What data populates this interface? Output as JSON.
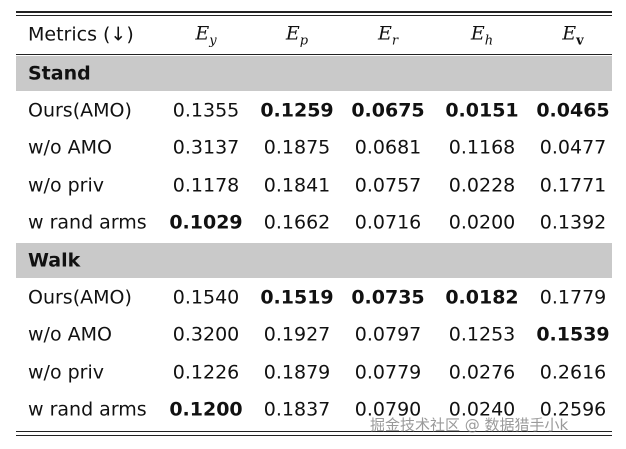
{
  "header": {
    "metric": "Metrics (↓)",
    "columns": [
      {
        "base": "E",
        "sub": "y",
        "sub_bold": false
      },
      {
        "base": "E",
        "sub": "p",
        "sub_bold": false
      },
      {
        "base": "E",
        "sub": "r",
        "sub_bold": false
      },
      {
        "base": "E",
        "sub": "h",
        "sub_bold": false
      },
      {
        "base": "E",
        "sub": "v",
        "sub_bold": true
      }
    ]
  },
  "sections": [
    {
      "title": "Stand",
      "rows": [
        {
          "label": "Ours(AMO)",
          "values": [
            "0.1355",
            "0.1259",
            "0.0675",
            "0.0151",
            "0.0465"
          ],
          "bold": [
            1,
            2,
            3,
            4
          ]
        },
        {
          "label": "w/o AMO",
          "values": [
            "0.3137",
            "0.1875",
            "0.0681",
            "0.1168",
            "0.0477"
          ],
          "bold": []
        },
        {
          "label": "w/o priv",
          "values": [
            "0.1178",
            "0.1841",
            "0.0757",
            "0.0228",
            "0.1771"
          ],
          "bold": []
        },
        {
          "label": "w rand arms",
          "values": [
            "0.1029",
            "0.1662",
            "0.0716",
            "0.0200",
            "0.1392"
          ],
          "bold": [
            0
          ]
        }
      ]
    },
    {
      "title": "Walk",
      "rows": [
        {
          "label": "Ours(AMO)",
          "values": [
            "0.1540",
            "0.1519",
            "0.0735",
            "0.0182",
            "0.1779"
          ],
          "bold": [
            1,
            2,
            3
          ]
        },
        {
          "label": "w/o AMO",
          "values": [
            "0.3200",
            "0.1927",
            "0.0797",
            "0.1253",
            "0.1539"
          ],
          "bold": [
            4
          ]
        },
        {
          "label": "w/o priv",
          "values": [
            "0.1226",
            "0.1879",
            "0.0779",
            "0.0276",
            "0.2616"
          ],
          "bold": []
        },
        {
          "label": "w rand arms",
          "values": [
            "0.1200",
            "0.1837",
            "0.0790",
            "0.0240",
            "0.2596"
          ],
          "bold": [
            0
          ]
        }
      ]
    }
  ],
  "watermark": "掘金技术社区 @ 数据猎手小k"
}
